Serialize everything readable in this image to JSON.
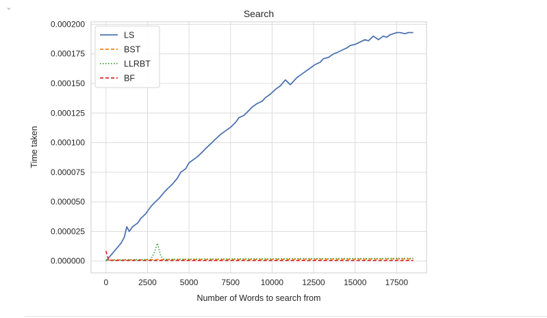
{
  "output_cell": {
    "collapse_icon": "chevron-down-icon",
    "collapse_glyph": "⌄"
  },
  "chart_data": {
    "type": "line",
    "title": "Search",
    "xlabel": "Number of Words to search from",
    "ylabel": "Time taken",
    "xlim": [
      -900,
      19300
    ],
    "ylim": [
      -1e-05,
      0.000202
    ],
    "xticks": [
      0,
      2500,
      5000,
      7500,
      10000,
      12500,
      15000,
      17500
    ],
    "xtick_labels": [
      "0",
      "2500",
      "5000",
      "7500",
      "10000",
      "12500",
      "15000",
      "17500"
    ],
    "yticks": [
      0,
      2.5e-05,
      5e-05,
      7.5e-05,
      0.0001,
      0.000125,
      0.00015,
      0.000175,
      0.0002
    ],
    "ytick_labels": [
      "0.000000",
      "0.000025",
      "0.000050",
      "0.000075",
      "0.000100",
      "0.000125",
      "0.000150",
      "0.000175",
      "0.000200"
    ],
    "grid": true,
    "legend_position": "top-left",
    "series": [
      {
        "name": "LS",
        "color": "#4c72b0",
        "style": "solid",
        "x": [
          0,
          300,
          600,
          900,
          1100,
          1250,
          1400,
          1600,
          1900,
          2100,
          2400,
          2700,
          2900,
          3200,
          3500,
          3700,
          4000,
          4300,
          4500,
          4800,
          5000,
          5200,
          5500,
          5800,
          6000,
          6300,
          6600,
          6900,
          7200,
          7500,
          7800,
          8000,
          8300,
          8600,
          8800,
          9100,
          9400,
          9600,
          9900,
          10200,
          10500,
          10800,
          11100,
          11300,
          11500,
          11800,
          12000,
          12300,
          12600,
          12900,
          13100,
          13400,
          13700,
          13900,
          14200,
          14500,
          14700,
          15000,
          15300,
          15600,
          15800,
          16100,
          16400,
          16700,
          16900,
          17100,
          17300,
          17500,
          17700,
          18000,
          18200,
          18500
        ],
        "values": [
          0.0,
          5e-06,
          1e-05,
          1.5e-05,
          2e-05,
          2.9e-05,
          2.5e-05,
          2.9e-05,
          3.2e-05,
          3.6e-05,
          4e-05,
          4.6e-05,
          4.9e-05,
          5.3e-05,
          5.8e-05,
          6.1e-05,
          6.5e-05,
          7e-05,
          7.5e-05,
          7.8e-05,
          8.3e-05,
          8.5e-05,
          8.8e-05,
          9.2e-05,
          9.5e-05,
          9.9e-05,
          0.000103,
          0.000107,
          0.00011,
          0.000113,
          0.000117,
          0.000121,
          0.000123,
          0.000127,
          0.00013,
          0.000133,
          0.000135,
          0.000138,
          0.000141,
          0.000145,
          0.000148,
          0.000153,
          0.000149,
          0.000152,
          0.000155,
          0.000158,
          0.00016,
          0.000163,
          0.000166,
          0.000168,
          0.000171,
          0.000172,
          0.000175,
          0.000176,
          0.000178,
          0.00018,
          0.000182,
          0.000183,
          0.000185,
          0.000187,
          0.000186,
          0.00019,
          0.000187,
          0.00019,
          0.000189,
          0.000191,
          0.000192,
          0.000193,
          0.000193,
          0.000192,
          0.000193,
          0.000193
        ]
      },
      {
        "name": "BST",
        "color": "#ff7f0e",
        "style": "dashed",
        "x": [
          0,
          1000,
          2000,
          3000,
          4000,
          5000,
          6000,
          7000,
          8000,
          9000,
          10000,
          11000,
          12000,
          13000,
          14000,
          15000,
          16000,
          17000,
          18000,
          18500
        ],
        "values": [
          8e-07,
          1e-06,
          1.1e-06,
          1.2e-06,
          1.2e-06,
          1.3e-06,
          1.3e-06,
          1.3e-06,
          1.4e-06,
          1.4e-06,
          1.4e-06,
          1.5e-06,
          1.5e-06,
          1.5e-06,
          1.6e-06,
          1.6e-06,
          1.6e-06,
          1.7e-06,
          1.7e-06,
          1.7e-06
        ]
      },
      {
        "name": "LLRBT",
        "color": "#2ca02c",
        "style": "dotted",
        "x": [
          0,
          1000,
          2000,
          2700,
          2900,
          3100,
          3300,
          3500,
          4000,
          5000,
          6000,
          7000,
          8000,
          9000,
          10000,
          11000,
          12000,
          13000,
          14000,
          15000,
          16000,
          17000,
          18000,
          18500
        ],
        "values": [
          8e-07,
          1e-06,
          1.2e-06,
          1.3e-06,
          7e-06,
          1.5e-05,
          4e-06,
          1.5e-06,
          1.5e-06,
          1.6e-06,
          1.7e-06,
          1.8e-06,
          1.8e-06,
          1.9e-06,
          1.9e-06,
          2e-06,
          2e-06,
          2e-06,
          2.1e-06,
          2.1e-06,
          2.2e-06,
          2.2e-06,
          2.3e-06,
          2.3e-06
        ]
      },
      {
        "name": "BF",
        "color": "#d62728",
        "style": "dashed",
        "x": [
          0,
          150,
          400,
          1000,
          2000,
          3000,
          4000,
          5000,
          6000,
          7000,
          8000,
          9000,
          10000,
          11000,
          12000,
          13000,
          14000,
          15000,
          16000,
          17000,
          18000,
          18500
        ],
        "values": [
          8.5e-06,
          8e-07,
          5e-07,
          5e-07,
          5e-07,
          5e-07,
          5e-07,
          5e-07,
          5e-07,
          5e-07,
          5e-07,
          5e-07,
          5e-07,
          5e-07,
          5e-07,
          5e-07,
          5e-07,
          5e-07,
          5e-07,
          5e-07,
          5e-07,
          5e-07
        ]
      }
    ]
  }
}
